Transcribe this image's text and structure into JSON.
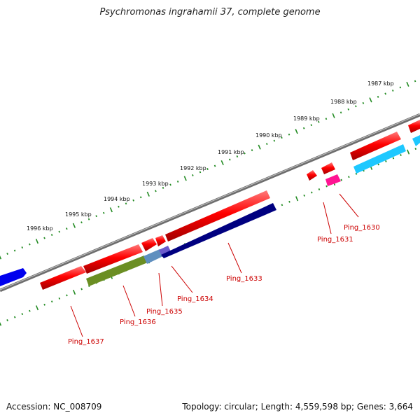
{
  "title": "Psychromonas ingrahamii 37, complete genome",
  "footer": {
    "accession": "Accession: NC_008709",
    "summary": "Topology: circular; Length: 4,559,598 bp; Genes: 3,664"
  },
  "kbp_labels": [
    "1987 kbp",
    "1988 kbp",
    "1989 kbp",
    "1990 kbp",
    "1991 kbp",
    "1992 kbp",
    "1993 kbp",
    "1994 kbp",
    "1995 kbp",
    "1996 kbp"
  ],
  "gene_labels": [
    "Ping_1630",
    "Ping_1631",
    "Ping_1633",
    "Ping_1634",
    "Ping_1635",
    "Ping_1636",
    "Ping_1637"
  ],
  "colors": {
    "backbone": "#888888",
    "scale_ticks": "#228b22",
    "gene_forward": "#ff0000",
    "label": "#cc0000",
    "orf_cyan": "#00bfff",
    "orf_magenta": "#ff1493",
    "orf_navy": "#000080",
    "orf_olive": "#6b8e23",
    "orf_blue": "#0000ff",
    "orf_slate": "#6a5acd",
    "orf_steel": "#4682b4"
  }
}
